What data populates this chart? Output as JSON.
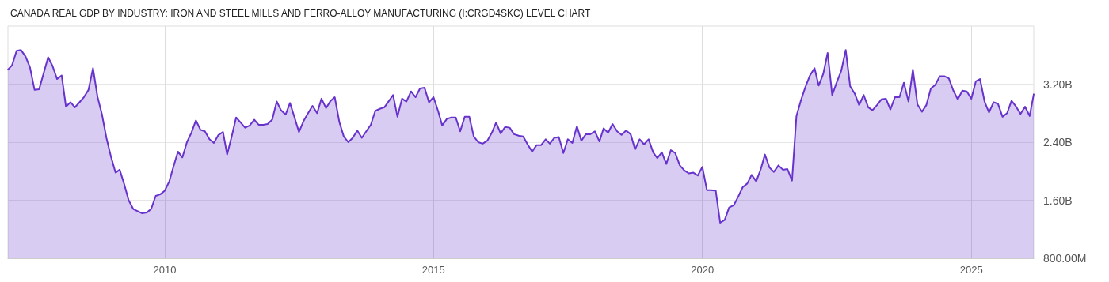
{
  "chart_data": {
    "type": "area",
    "title": "CANADA REAL GDP BY INDUSTRY: IRON AND STEEL MILLS AND FERRO-ALLOY MANUFACTURING (I:CRGD4SKC) LEVEL CHART",
    "x": [
      "2007-02",
      "2007-03",
      "2007-04",
      "2007-05",
      "2007-06",
      "2007-07",
      "2007-08",
      "2007-09",
      "2007-11",
      "2007-12",
      "2008-01",
      "2008-02",
      "2008-03",
      "2008-04",
      "2008-05",
      "2008-06",
      "2008-07",
      "2008-08",
      "2008-09",
      "2008-10",
      "2008-11",
      "2008-12",
      "2009-01",
      "2009-02",
      "2009-03",
      "2009-04",
      "2009-05",
      "2009-06",
      "2009-07",
      "2009-08",
      "2009-09",
      "2009-10",
      "2009-11",
      "2009-12",
      "2010-01",
      "2010-02",
      "2010-03",
      "2010-04",
      "2010-05",
      "2010-06",
      "2010-07",
      "2010-08",
      "2010-09",
      "2010-10",
      "2010-11",
      "2010-12",
      "2011-01",
      "2011-02",
      "2011-03",
      "2011-04",
      "2011-05",
      "2011-06",
      "2011-07",
      "2011-08",
      "2011-09",
      "2011-10",
      "2011-11",
      "2011-12",
      "2012-01",
      "2012-02",
      "2012-03",
      "2012-04",
      "2012-05",
      "2012-06",
      "2012-07",
      "2012-08",
      "2012-09",
      "2012-10",
      "2012-11",
      "2012-12",
      "2013-01",
      "2013-02",
      "2013-03",
      "2013-04",
      "2013-05",
      "2013-06",
      "2013-07",
      "2013-08",
      "2013-09",
      "2013-10",
      "2013-11",
      "2013-12",
      "2014-01",
      "2014-02",
      "2014-03",
      "2014-04",
      "2014-05",
      "2014-06",
      "2014-07",
      "2014-08",
      "2014-09",
      "2014-10",
      "2014-11",
      "2014-12",
      "2015-01",
      "2015-02",
      "2015-03",
      "2015-04",
      "2015-05",
      "2015-06",
      "2015-07",
      "2015-08",
      "2015-09",
      "2015-10",
      "2015-11",
      "2015-12",
      "2016-01",
      "2016-02",
      "2016-03",
      "2016-04",
      "2016-05",
      "2016-06",
      "2016-07",
      "2016-08",
      "2016-09",
      "2016-10",
      "2016-11",
      "2016-12",
      "2017-01",
      "2017-02",
      "2017-03",
      "2017-04",
      "2017-05",
      "2017-06",
      "2017-07",
      "2017-08",
      "2017-09",
      "2017-10",
      "2017-11",
      "2017-12",
      "2018-01",
      "2018-02",
      "2018-03",
      "2018-04",
      "2018-05",
      "2018-06",
      "2018-07",
      "2018-08",
      "2018-09",
      "2018-10",
      "2018-11",
      "2018-12",
      "2019-01",
      "2019-02",
      "2019-03",
      "2019-04",
      "2019-05",
      "2019-06",
      "2019-07",
      "2019-08",
      "2019-09",
      "2019-10",
      "2019-11",
      "2019-12",
      "2020-01",
      "2020-02",
      "2020-03",
      "2020-04",
      "2020-05",
      "2020-06",
      "2020-07",
      "2020-08",
      "2020-09",
      "2020-10",
      "2020-11",
      "2020-12",
      "2021-01",
      "2021-02",
      "2021-03",
      "2021-04",
      "2021-05",
      "2021-06",
      "2021-07",
      "2021-08",
      "2021-09",
      "2021-10",
      "2021-11",
      "2021-12",
      "2022-01",
      "2022-02",
      "2022-03",
      "2022-04",
      "2022-05",
      "2022-06",
      "2022-07",
      "2022-08",
      "2022-09",
      "2022-10",
      "2022-11",
      "2022-12",
      "2023-01",
      "2023-02",
      "2023-03",
      "2023-04",
      "2023-05",
      "2023-06",
      "2023-07",
      "2023-08",
      "2023-09",
      "2023-10",
      "2023-11",
      "2023-12",
      "2024-01",
      "2024-02",
      "2024-03",
      "2024-04",
      "2024-05",
      "2024-06",
      "2024-07",
      "2024-08",
      "2024-09",
      "2024-10",
      "2024-11",
      "2024-12",
      "2025-01",
      "2025-02",
      "2025-03",
      "2025-04",
      "2025-05",
      "2025-06",
      "2025-07",
      "2025-08",
      "2025-09",
      "2025-10",
      "2025-11",
      "2025-12",
      "2026-01",
      "2026-02",
      "2026-03"
    ],
    "series": [
      {
        "color": "#6733cc",
        "values": [
          3400000000.0,
          3460000000.0,
          3660000000.0,
          3670000000.0,
          3580000000.0,
          3430000000.0,
          3120000000.0,
          3130000000.0,
          3570000000.0,
          3450000000.0,
          3270000000.0,
          3320000000.0,
          2890000000.0,
          2950000000.0,
          2880000000.0,
          2950000000.0,
          3020000000.0,
          3120000000.0,
          3420000000.0,
          3030000000.0,
          2780000000.0,
          2460000000.0,
          2200000000.0,
          1980000000.0,
          2020000000.0,
          1820000000.0,
          1600000000.0,
          1480000000.0,
          1450000000.0,
          1420000000.0,
          1430000000.0,
          1480000000.0,
          1660000000.0,
          1680000000.0,
          1730000000.0,
          1860000000.0,
          2060000000.0,
          2270000000.0,
          2190000000.0,
          2400000000.0,
          2530000000.0,
          2700000000.0,
          2570000000.0,
          2550000000.0,
          2440000000.0,
          2390000000.0,
          2500000000.0,
          2540000000.0,
          2230000000.0,
          2480000000.0,
          2740000000.0,
          2670000000.0,
          2600000000.0,
          2630000000.0,
          2710000000.0,
          2640000000.0,
          2640000000.0,
          2650000000.0,
          2710000000.0,
          2960000000.0,
          2840000000.0,
          2780000000.0,
          2940000000.0,
          2740000000.0,
          2540000000.0,
          2690000000.0,
          2800000000.0,
          2900000000.0,
          2800000000.0,
          3000000000.0,
          2870000000.0,
          2970000000.0,
          3020000000.0,
          2680000000.0,
          2480000000.0,
          2400000000.0,
          2460000000.0,
          2560000000.0,
          2460000000.0,
          2550000000.0,
          2640000000.0,
          2830000000.0,
          2860000000.0,
          2880000000.0,
          2960000000.0,
          3050000000.0,
          2750000000.0,
          3000000000.0,
          2960000000.0,
          3100000000.0,
          3020000000.0,
          3140000000.0,
          3150000000.0,
          2950000000.0,
          3020000000.0,
          2830000000.0,
          2630000000.0,
          2720000000.0,
          2740000000.0,
          2740000000.0,
          2550000000.0,
          2750000000.0,
          2750000000.0,
          2480000000.0,
          2400000000.0,
          2380000000.0,
          2420000000.0,
          2530000000.0,
          2670000000.0,
          2520000000.0,
          2610000000.0,
          2600000000.0,
          2510000000.0,
          2490000000.0,
          2480000000.0,
          2370000000.0,
          2270000000.0,
          2360000000.0,
          2360000000.0,
          2440000000.0,
          2380000000.0,
          2460000000.0,
          2470000000.0,
          2250000000.0,
          2440000000.0,
          2390000000.0,
          2620000000.0,
          2420000000.0,
          2510000000.0,
          2510000000.0,
          2550000000.0,
          2410000000.0,
          2590000000.0,
          2530000000.0,
          2650000000.0,
          2550000000.0,
          2500000000.0,
          2560000000.0,
          2510000000.0,
          2300000000.0,
          2440000000.0,
          2370000000.0,
          2440000000.0,
          2260000000.0,
          2180000000.0,
          2260000000.0,
          2100000000.0,
          2290000000.0,
          2250000000.0,
          2080000000.0,
          2010000000.0,
          1970000000.0,
          1980000000.0,
          1940000000.0,
          2060000000.0,
          1740000000.0,
          1740000000.0,
          1730000000.0,
          1290000000.0,
          1330000000.0,
          1500000000.0,
          1530000000.0,
          1650000000.0,
          1780000000.0,
          1830000000.0,
          1950000000.0,
          1860000000.0,
          2030000000.0,
          2230000000.0,
          2050000000.0,
          1990000000.0,
          2080000000.0,
          2020000000.0,
          2030000000.0,
          1870000000.0,
          2760000000.0,
          2980000000.0,
          3160000000.0,
          3320000000.0,
          3420000000.0,
          3180000000.0,
          3340000000.0,
          3630000000.0,
          3050000000.0,
          3220000000.0,
          3380000000.0,
          3670000000.0,
          3170000000.0,
          3070000000.0,
          2910000000.0,
          3050000000.0,
          2880000000.0,
          2840000000.0,
          2910000000.0,
          2990000000.0,
          3000000000.0,
          2850000000.0,
          3020000000.0,
          3020000000.0,
          3220000000.0,
          2960000000.0,
          3400000000.0,
          2920000000.0,
          2820000000.0,
          2910000000.0,
          3140000000.0,
          3190000000.0,
          3310000000.0,
          3310000000.0,
          3280000000.0,
          3110000000.0,
          2990000000.0,
          3110000000.0,
          3100000000.0,
          3000000000.0,
          3240000000.0,
          3270000000.0,
          2960000000.0,
          2810000000.0,
          2950000000.0,
          2930000000.0,
          2750000000.0,
          2800000000.0,
          2970000000.0,
          2890000000.0,
          2790000000.0,
          2890000000.0,
          2760000000.0,
          3060000000.0
        ]
      }
    ],
    "xlim": [
      "2007-02",
      "2026-03"
    ],
    "xticks": [
      "2010",
      "2015",
      "2020",
      "2025"
    ],
    "ylim": [
      800000000.0,
      4000000000.0
    ],
    "yticks": [
      {
        "value": 800000000.0,
        "label": "800.00M"
      },
      {
        "value": 1600000000.0,
        "label": "1.60B"
      },
      {
        "value": 2400000000.0,
        "label": "2.40B"
      },
      {
        "value": 3200000000.0,
        "label": "3.20B"
      }
    ],
    "grid": true
  }
}
